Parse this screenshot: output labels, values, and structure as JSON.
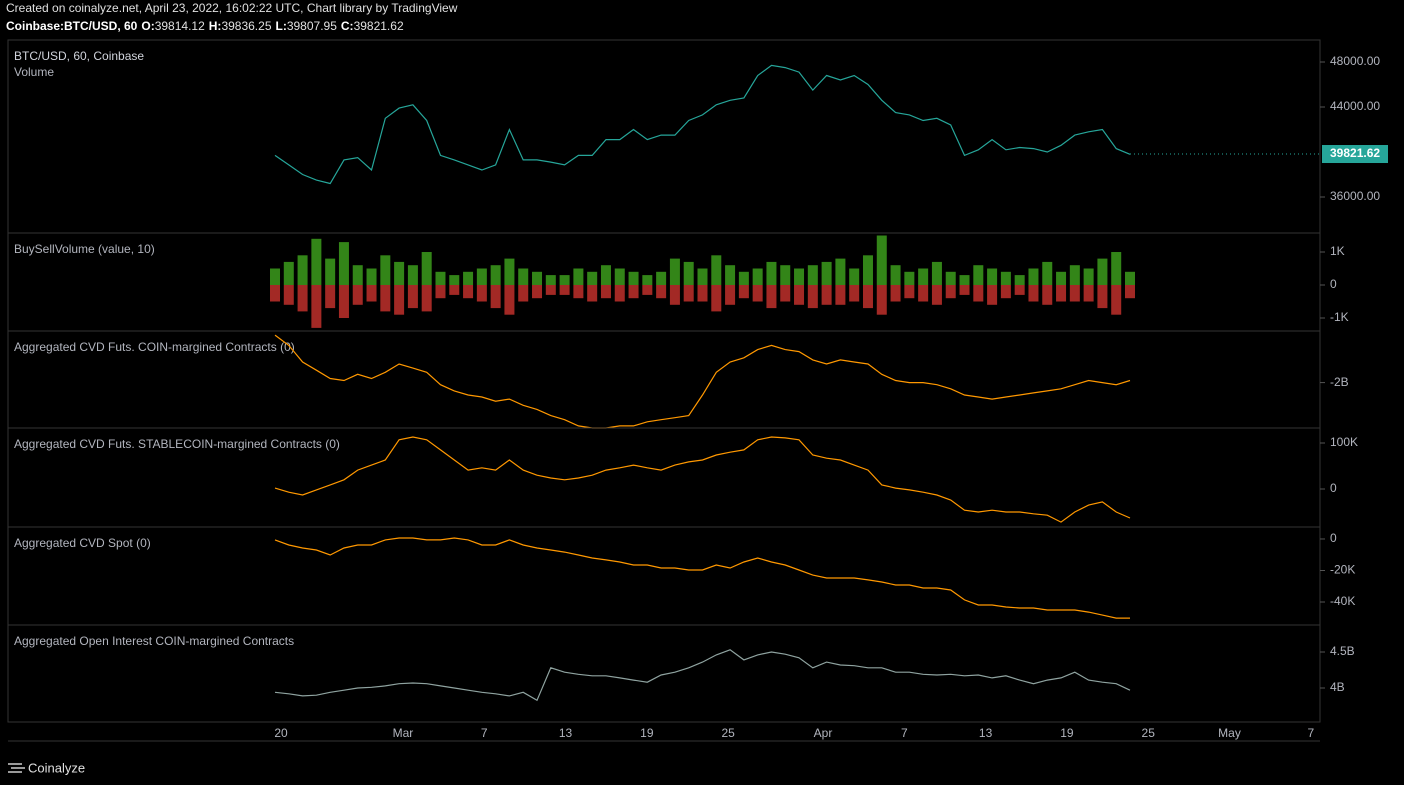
{
  "header": {
    "created": "Created on coinalyze.net, April 23, 2022, 16:02:22 UTC, Chart library by TradingView",
    "symbol": "Coinbase:BTC/USD, 60",
    "ohlc": [
      {
        "key": "O:",
        "value": "39814.12"
      },
      {
        "key": "H:",
        "value": "39836.25"
      },
      {
        "key": "L:",
        "value": "39807.95"
      },
      {
        "key": "C:",
        "value": "39821.62"
      }
    ]
  },
  "x_axis": {
    "ticks": [
      "20",
      "Mar",
      "7",
      "13",
      "19",
      "25",
      "Apr",
      "7",
      "13",
      "19",
      "25",
      "May",
      "7"
    ]
  },
  "footer": {
    "brand": "Coinalyze"
  },
  "chart_data": [
    {
      "type": "line",
      "title": "BTC/USD, 60, Coinbase",
      "subtitle": "Volume",
      "ylim": [
        32800,
        49956
      ],
      "yticks": [
        {
          "value": 36000,
          "label": "36000.00"
        },
        {
          "value": 44000,
          "label": "44000.00"
        },
        {
          "value": 48000,
          "label": "48000.00"
        }
      ],
      "last_price": 39821.62,
      "last_price_color": "#26a69a",
      "series": [
        {
          "name": "BTC/USD",
          "color": "#26a69a",
          "values": [
            39700,
            38850,
            38000,
            37500,
            37200,
            39300,
            39500,
            38400,
            43000,
            43900,
            44200,
            42800,
            39700,
            39300,
            38850,
            38400,
            38850,
            42000,
            39300,
            39300,
            39100,
            38850,
            39700,
            39700,
            41100,
            41100,
            42000,
            41100,
            41500,
            41500,
            42800,
            43300,
            44200,
            44600,
            44800,
            46800,
            47700,
            47500,
            47100,
            45500,
            46800,
            46400,
            46800,
            46000,
            44600,
            43500,
            43300,
            42800,
            43000,
            42400,
            39700,
            40200,
            41100,
            40200,
            40400,
            40300,
            40000,
            40600,
            41500,
            41800,
            42000,
            40300,
            39800
          ]
        }
      ]
    },
    {
      "type": "bar",
      "title": "BuySellVolume (value, 10)",
      "ylim": [
        -1394,
        1576
      ],
      "yticks": [
        {
          "value": 1000,
          "label": "1K"
        },
        0,
        {
          "value": -1000,
          "label": "-1K"
        }
      ],
      "series": [
        {
          "name": "Buy",
          "color": "#3c9c1c",
          "values": [
            500,
            700,
            900,
            1400,
            800,
            1300,
            600,
            500,
            900,
            700,
            600,
            1000,
            400,
            300,
            400,
            500,
            600,
            800,
            500,
            400,
            300,
            300,
            500,
            400,
            600,
            500,
            400,
            300,
            400,
            800,
            700,
            500,
            900,
            600,
            400,
            500,
            700,
            600,
            500,
            600,
            700,
            800,
            500,
            900,
            1500,
            600,
            400,
            500,
            700,
            400,
            300,
            600,
            500,
            400,
            300,
            500,
            700,
            400,
            600,
            500,
            800,
            1000,
            400
          ]
        },
        {
          "name": "Sell",
          "color": "#c0302b",
          "values": [
            -500,
            -600,
            -800,
            -1300,
            -700,
            -1000,
            -600,
            -500,
            -800,
            -900,
            -700,
            -800,
            -400,
            -300,
            -400,
            -500,
            -700,
            -900,
            -500,
            -400,
            -300,
            -300,
            -400,
            -500,
            -400,
            -500,
            -400,
            -300,
            -400,
            -600,
            -500,
            -500,
            -800,
            -600,
            -400,
            -500,
            -700,
            -500,
            -600,
            -700,
            -600,
            -600,
            -500,
            -700,
            -900,
            -500,
            -400,
            -500,
            -600,
            -400,
            -300,
            -500,
            -600,
            -400,
            -300,
            -500,
            -600,
            -500,
            -500,
            -500,
            -700,
            -900,
            -400
          ]
        }
      ]
    },
    {
      "type": "line",
      "title": "Aggregated CVD Futs. COIN-margined Contracts (0)",
      "ylim": [
        -2.22,
        -1.75
      ],
      "yticks": [
        {
          "value": -2,
          "label": "-2B"
        }
      ],
      "series": [
        {
          "name": "CVD COIN",
          "color": "#ff9800",
          "values": [
            -1.77,
            -1.82,
            -1.9,
            -1.94,
            -1.98,
            -1.99,
            -1.96,
            -1.98,
            -1.95,
            -1.91,
            -1.93,
            -1.95,
            -2.01,
            -2.04,
            -2.06,
            -2.07,
            -2.09,
            -2.08,
            -2.11,
            -2.13,
            -2.16,
            -2.18,
            -2.21,
            -2.22,
            -2.22,
            -2.21,
            -2.21,
            -2.19,
            -2.18,
            -2.17,
            -2.16,
            -2.06,
            -1.95,
            -1.9,
            -1.88,
            -1.84,
            -1.82,
            -1.84,
            -1.85,
            -1.89,
            -1.91,
            -1.89,
            -1.9,
            -1.91,
            -1.96,
            -1.99,
            -2.0,
            -2.0,
            -2.01,
            -2.03,
            -2.06,
            -2.07,
            -2.08,
            -2.07,
            -2.06,
            -2.05,
            -2.04,
            -2.03,
            -2.01,
            -1.99,
            -2.0,
            -2.01,
            -1.99
          ]
        }
      ]
    },
    {
      "type": "line",
      "title": "Aggregated CVD Futs. STABLECOIN-margined Contracts (0)",
      "ylim": [
        -82600,
        132600
      ],
      "yticks": [
        {
          "value": 100000,
          "label": "100K"
        },
        0
      ],
      "series": [
        {
          "name": "CVD STABLECOIN",
          "color": "#ff9800",
          "values": [
            2000,
            -7000,
            -13000,
            -2000,
            9000,
            20000,
            41000,
            52000,
            63000,
            107000,
            113000,
            107000,
            85000,
            63000,
            41000,
            46000,
            41000,
            63000,
            41000,
            30000,
            24000,
            20000,
            24000,
            30000,
            41000,
            46000,
            52000,
            46000,
            41000,
            52000,
            59000,
            63000,
            74000,
            80000,
            85000,
            107000,
            113000,
            111000,
            107000,
            74000,
            67000,
            63000,
            52000,
            41000,
            9000,
            2000,
            -2000,
            -7000,
            -13000,
            -24000,
            -46000,
            -50000,
            -46000,
            -50000,
            -50000,
            -54000,
            -57000,
            -72000,
            -50000,
            -35000,
            -28000,
            -50000,
            -63000
          ]
        }
      ]
    },
    {
      "type": "line",
      "title": "Aggregated CVD Spot (0)",
      "ylim": [
        -54600,
        7600
      ],
      "yticks": [
        0,
        {
          "value": -20000,
          "label": "-20K"
        },
        {
          "value": -40000,
          "label": "-40K"
        }
      ],
      "series": [
        {
          "name": "CVD Spot",
          "color": "#ff9800",
          "values": [
            -600,
            -3800,
            -5700,
            -7000,
            -10200,
            -5700,
            -3800,
            -3800,
            -600,
            600,
            600,
            -600,
            -600,
            600,
            -600,
            -3800,
            -3800,
            -600,
            -3800,
            -5700,
            -7000,
            -8300,
            -10200,
            -12100,
            -13300,
            -14600,
            -16500,
            -16500,
            -18400,
            -18400,
            -19700,
            -19700,
            -16500,
            -18400,
            -14600,
            -12100,
            -14600,
            -16500,
            -19700,
            -22900,
            -24800,
            -24800,
            -24800,
            -26000,
            -27300,
            -29200,
            -29200,
            -31100,
            -31100,
            -32400,
            -38700,
            -41900,
            -41900,
            -43200,
            -43800,
            -43800,
            -45100,
            -45100,
            -45100,
            -46400,
            -48300,
            -50200,
            -50200
          ]
        }
      ]
    },
    {
      "type": "line",
      "title": "Aggregated Open Interest COIN-margined Contracts",
      "ylim": [
        3.528,
        4.875
      ],
      "yticks": [
        {
          "value": 4.5,
          "label": "4.5B"
        },
        {
          "value": 4,
          "label": "4B"
        }
      ],
      "series": [
        {
          "name": "Open Interest",
          "color": "#8fa3a0",
          "values": [
            3.94,
            3.92,
            3.89,
            3.9,
            3.94,
            3.97,
            4.0,
            4.01,
            4.03,
            4.06,
            4.07,
            4.06,
            4.03,
            4.0,
            3.97,
            3.94,
            3.92,
            3.89,
            3.94,
            3.83,
            4.28,
            4.22,
            4.19,
            4.17,
            4.17,
            4.14,
            4.11,
            4.08,
            4.18,
            4.22,
            4.28,
            4.36,
            4.46,
            4.53,
            4.39,
            4.46,
            4.5,
            4.47,
            4.42,
            4.28,
            4.36,
            4.32,
            4.31,
            4.28,
            4.28,
            4.22,
            4.22,
            4.19,
            4.18,
            4.19,
            4.17,
            4.18,
            4.14,
            4.17,
            4.11,
            4.06,
            4.11,
            4.14,
            4.22,
            4.11,
            4.08,
            4.06,
            3.97
          ]
        }
      ]
    }
  ]
}
